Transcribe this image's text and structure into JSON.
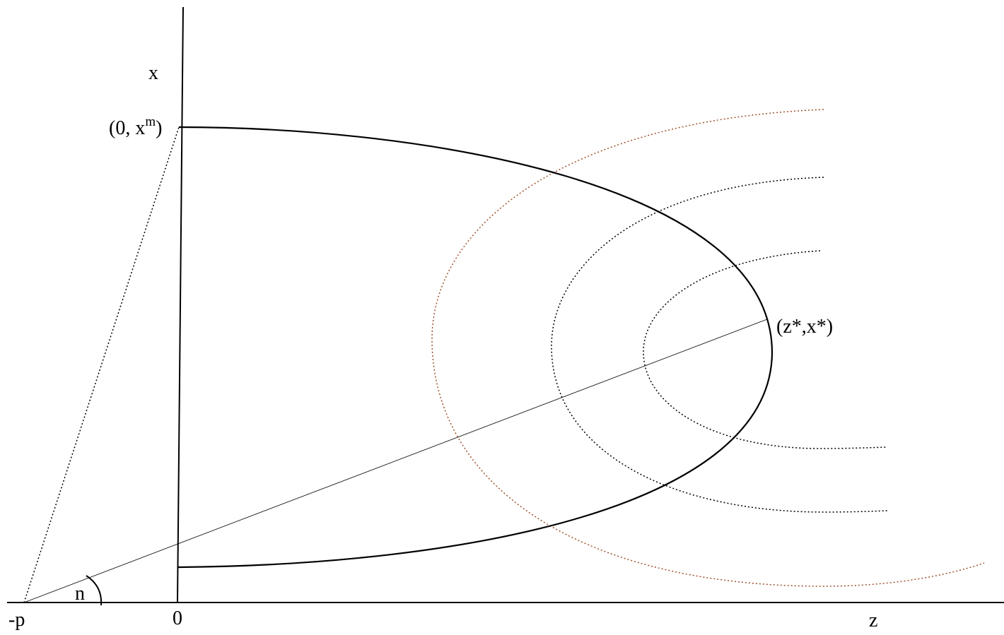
{
  "labels": {
    "x_axis": "x",
    "z_axis": "z",
    "origin": "0",
    "neg_p": "-p",
    "angle": "n",
    "point_top_open": "(0, x",
    "point_top_sup": "m",
    "point_top_close": ")",
    "point_star": "(z*,x*)"
  },
  "colors": {
    "ink": "#000000",
    "iso_outer": "#a0522d",
    "iso_inner": "#000000"
  }
}
